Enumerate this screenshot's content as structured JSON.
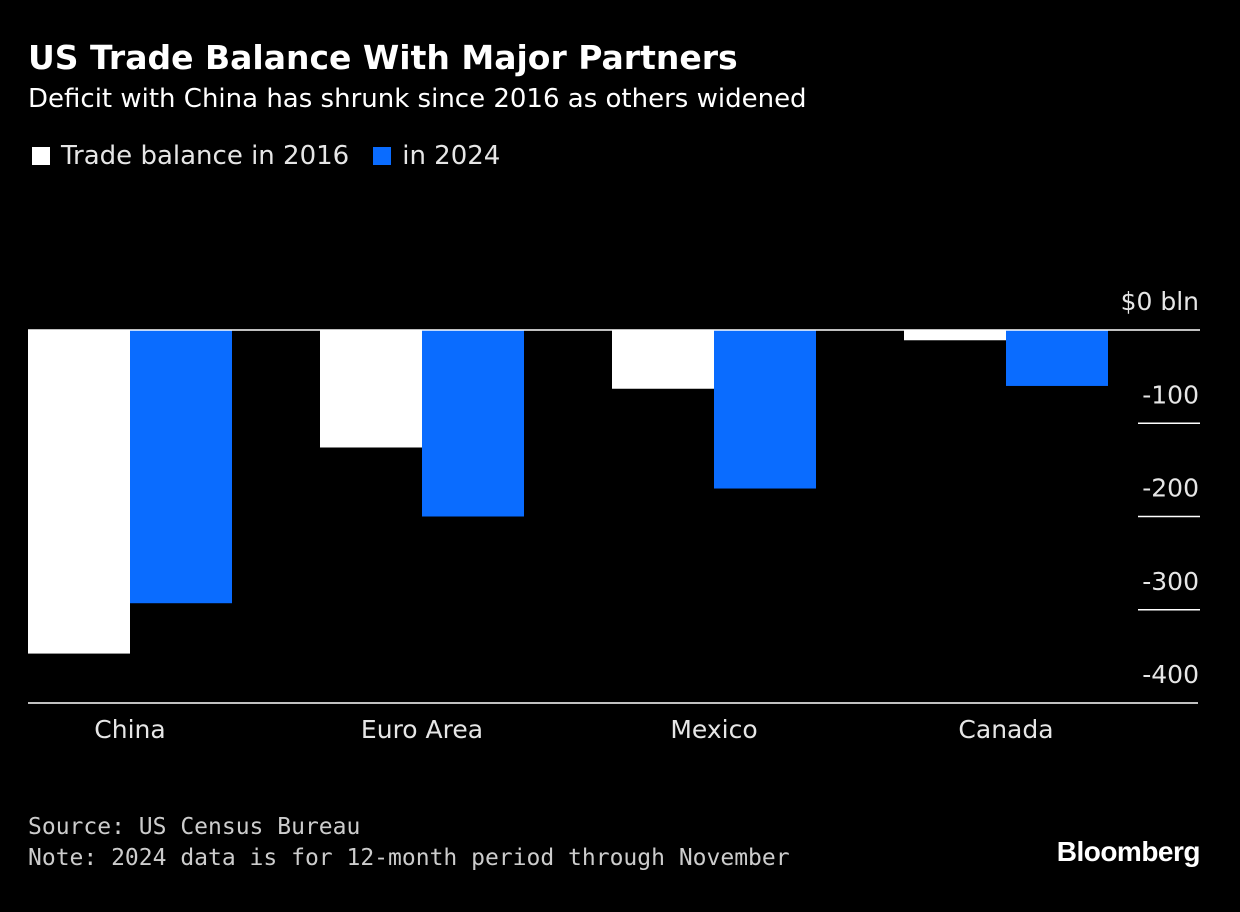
{
  "header": {
    "title": "US Trade Balance With Major Partners",
    "subtitle": "Deficit with China has shrunk since 2016 as others widened"
  },
  "legend": {
    "items": [
      {
        "label": "Trade balance in 2016",
        "color": "#ffffff"
      },
      {
        "label": "in 2024",
        "color": "#0a6cff"
      }
    ]
  },
  "chart_data": {
    "type": "bar",
    "title": "US Trade Balance With Major Partners",
    "subtitle": "Deficit with China has shrunk since 2016 as others widened",
    "categories": [
      "China",
      "Euro Area",
      "Mexico",
      "Canada"
    ],
    "series": [
      {
        "name": "Trade balance in 2016",
        "color": "#ffffff",
        "values": [
          -347,
          -126,
          -63,
          -11
        ]
      },
      {
        "name": "in 2024",
        "color": "#0a6cff",
        "values": [
          -293,
          -200,
          -170,
          -60
        ]
      }
    ],
    "ylim": [
      -400,
      0
    ],
    "yticks": [
      0,
      -100,
      -200,
      -300,
      -400
    ],
    "ytick_labels": [
      "$0 bln",
      "-100",
      "-200",
      "-300",
      "-400"
    ],
    "xlabel": "",
    "ylabel": "",
    "grid": false,
    "legend_position": "top-left"
  },
  "footer": {
    "source": "Source: US Census Bureau",
    "note": "Note: 2024 data is for 12-month period through November",
    "brand": "Bloomberg"
  }
}
